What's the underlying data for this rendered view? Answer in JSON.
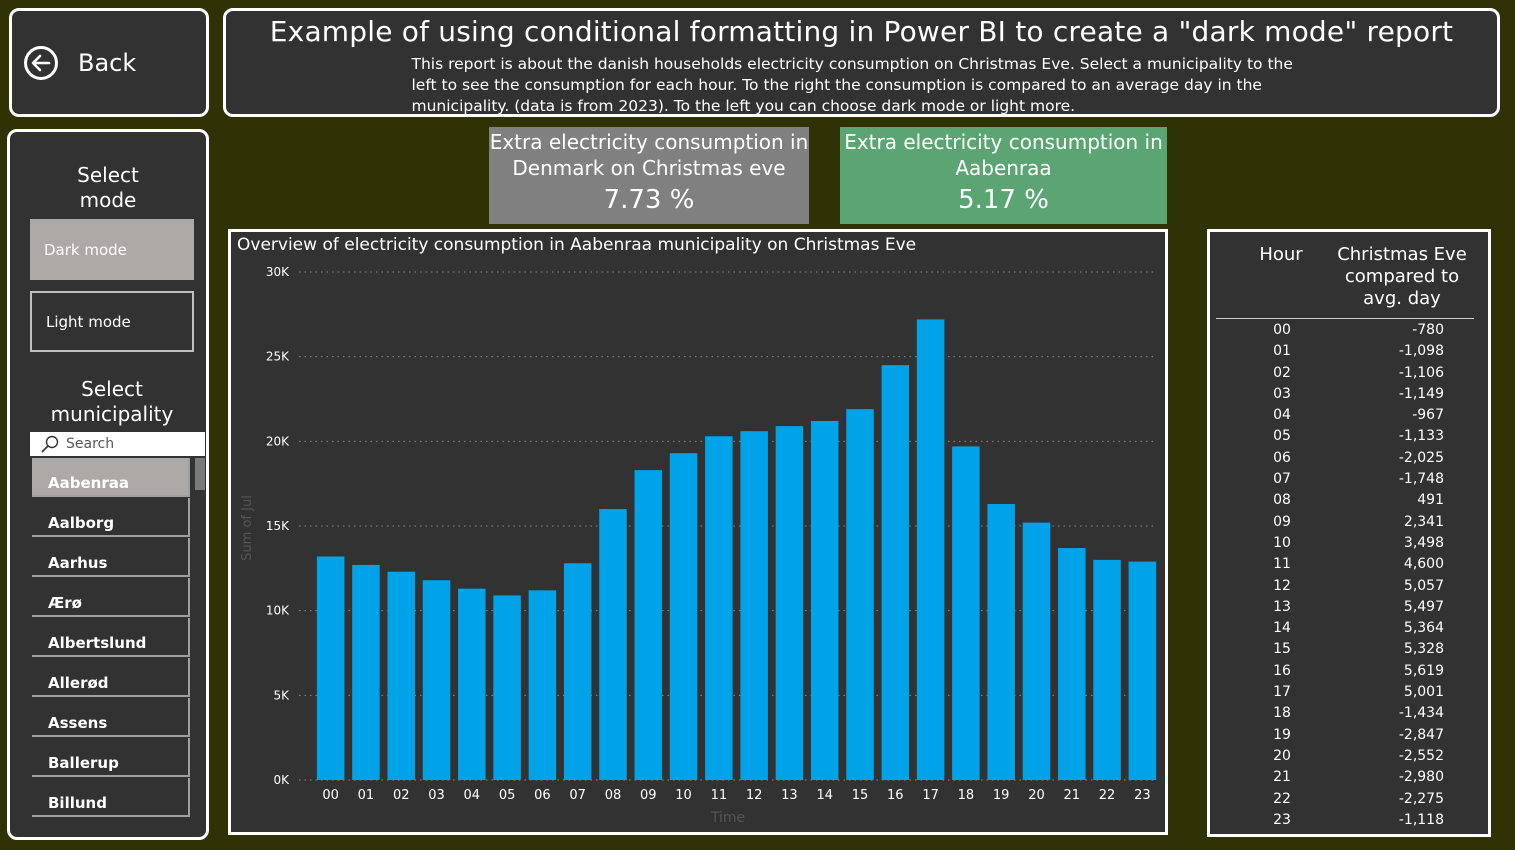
{
  "back": {
    "label": "Back"
  },
  "header": {
    "title": "Example of using conditional formatting in Power BI to create a \"dark mode\" report",
    "description": "This report is about the danish households electricity consumption on Christmas Eve. Select a municipality to the left to see the consumption for each hour. To the right the consumption is compared to an average day in the municipality. (data is from 2023). To the left you can choose dark mode or light more."
  },
  "sidebar": {
    "mode_title": "Select mode",
    "modes": [
      "Dark mode",
      "Light mode"
    ],
    "selected_mode": "Dark mode",
    "municipality_title": "Select municipality",
    "search_placeholder": "Search",
    "municipalities": [
      "Aabenraa",
      "Aalborg",
      "Aarhus",
      "Ærø",
      "Albertslund",
      "Allerød",
      "Assens",
      "Ballerup",
      "Billund"
    ],
    "selected_municipality": "Aabenraa"
  },
  "kpis": {
    "denmark": {
      "title": "Extra electricity consumption in Denmark on Christmas eve",
      "value": "7.73 %"
    },
    "municipality": {
      "title": "Extra electricity consumption in Aabenraa",
      "value": "5.17 %"
    }
  },
  "colors": {
    "background": "#2f3204",
    "panel": "#323232",
    "bar": "#00a2e8",
    "kpi_green": "#5ba573",
    "kpi_grey": "#808080"
  },
  "chart_data": {
    "type": "bar",
    "title": "Overview of electricity consumption in Aabenraa municipality on Christmas Eve",
    "xlabel": "Time",
    "ylabel": "Sum of Jul",
    "ylim": [
      0,
      30000
    ],
    "yticks": [
      "0K",
      "5K",
      "10K",
      "15K",
      "20K",
      "25K",
      "30K"
    ],
    "categories": [
      "00",
      "01",
      "02",
      "03",
      "04",
      "05",
      "06",
      "07",
      "08",
      "09",
      "10",
      "11",
      "12",
      "13",
      "14",
      "15",
      "16",
      "17",
      "18",
      "19",
      "20",
      "21",
      "22",
      "23"
    ],
    "values": [
      13200,
      12700,
      12300,
      11800,
      11300,
      10900,
      11200,
      12800,
      16000,
      18300,
      19300,
      20300,
      20600,
      20900,
      21200,
      21900,
      24500,
      27200,
      19700,
      16300,
      15200,
      13700,
      13000,
      12900
    ],
    "grid": true
  },
  "table": {
    "headers": [
      "Hour",
      "Christmas Eve compared to avg. day"
    ],
    "rows": [
      [
        "00",
        "-780"
      ],
      [
        "01",
        "-1,098"
      ],
      [
        "02",
        "-1,106"
      ],
      [
        "03",
        "-1,149"
      ],
      [
        "04",
        "-967"
      ],
      [
        "05",
        "-1,133"
      ],
      [
        "06",
        "-2,025"
      ],
      [
        "07",
        "-1,748"
      ],
      [
        "08",
        "491"
      ],
      [
        "09",
        "2,341"
      ],
      [
        "10",
        "3,498"
      ],
      [
        "11",
        "4,600"
      ],
      [
        "12",
        "5,057"
      ],
      [
        "13",
        "5,497"
      ],
      [
        "14",
        "5,364"
      ],
      [
        "15",
        "5,328"
      ],
      [
        "16",
        "5,619"
      ],
      [
        "17",
        "5,001"
      ],
      [
        "18",
        "-1,434"
      ],
      [
        "19",
        "-2,847"
      ],
      [
        "20",
        "-2,552"
      ],
      [
        "21",
        "-2,980"
      ],
      [
        "22",
        "-2,275"
      ],
      [
        "23",
        "-1,118"
      ]
    ]
  }
}
